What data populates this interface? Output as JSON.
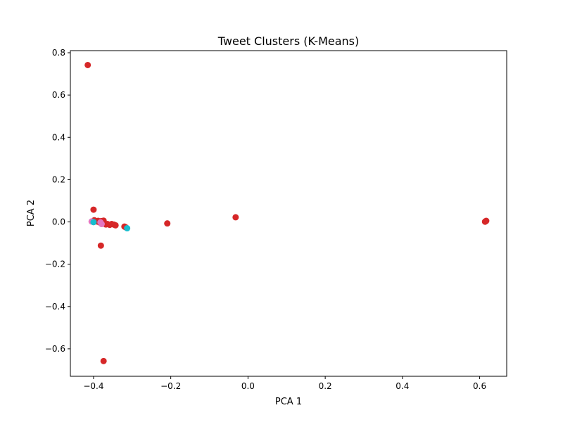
{
  "chart_data": {
    "type": "scatter",
    "title": "Tweet Clusters (K-Means)",
    "xlabel": "PCA 1",
    "ylabel": "PCA 2",
    "xlim": [
      -0.46,
      0.67
    ],
    "ylim": [
      -0.73,
      0.81
    ],
    "xticks": [
      -0.4,
      -0.2,
      0.0,
      0.2,
      0.4,
      0.6
    ],
    "xtick_labels": [
      "−0.4",
      "−0.2",
      "0.0",
      "0.2",
      "0.4",
      "0.6"
    ],
    "yticks": [
      -0.6,
      -0.4,
      -0.2,
      0.0,
      0.2,
      0.4,
      0.6,
      0.8
    ],
    "ytick_labels": [
      "−0.6",
      "−0.4",
      "−0.2",
      "0.0",
      "0.2",
      "0.4",
      "0.6",
      "0.8"
    ],
    "grid": false,
    "legend": "none",
    "series": [
      {
        "color": "#d62728",
        "points": [
          {
            "x": -0.415,
            "y": 0.742
          },
          {
            "x": -0.4,
            "y": 0.058
          },
          {
            "x": -0.398,
            "y": 0.008
          },
          {
            "x": -0.392,
            "y": 0.002
          },
          {
            "x": -0.388,
            "y": 0.005
          },
          {
            "x": -0.385,
            "y": -0.002
          },
          {
            "x": -0.38,
            "y": 0.004
          },
          {
            "x": -0.376,
            "y": -0.004
          },
          {
            "x": -0.374,
            "y": 0.006
          },
          {
            "x": -0.371,
            "y": -0.008
          },
          {
            "x": -0.368,
            "y": -0.012
          },
          {
            "x": -0.364,
            "y": -0.01
          },
          {
            "x": -0.358,
            "y": -0.014
          },
          {
            "x": -0.353,
            "y": -0.01
          },
          {
            "x": -0.347,
            "y": -0.013
          },
          {
            "x": -0.343,
            "y": -0.016
          },
          {
            "x": -0.32,
            "y": -0.022
          },
          {
            "x": -0.317,
            "y": -0.025
          },
          {
            "x": -0.381,
            "y": -0.112
          },
          {
            "x": -0.374,
            "y": -0.658
          },
          {
            "x": -0.209,
            "y": -0.007
          },
          {
            "x": -0.032,
            "y": 0.022
          },
          {
            "x": 0.615,
            "y": 0.003
          },
          {
            "x": 0.617,
            "y": 0.005
          },
          {
            "x": 0.614,
            "y": 0.001
          }
        ]
      },
      {
        "color": "#e377c2",
        "points": [
          {
            "x": -0.405,
            "y": 0.002
          },
          {
            "x": -0.382,
            "y": -0.002
          },
          {
            "x": -0.379,
            "y": -0.01
          }
        ]
      },
      {
        "color": "#17becf",
        "points": [
          {
            "x": -0.4,
            "y": -0.001
          },
          {
            "x": -0.313,
            "y": -0.03
          }
        ]
      }
    ]
  }
}
